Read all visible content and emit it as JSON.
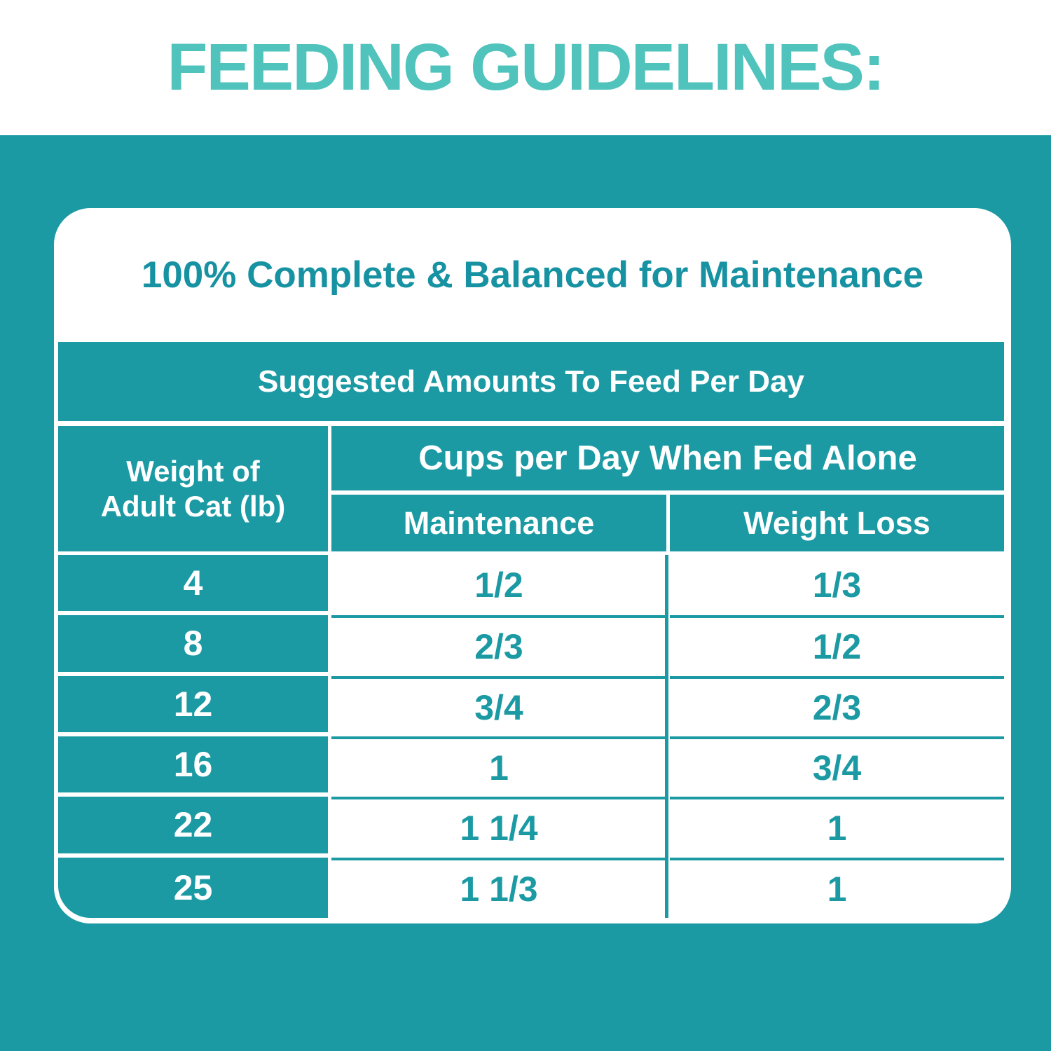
{
  "title": "FEEDING GUIDELINES:",
  "card": {
    "heading": "100% Complete & Balanced for Maintenance"
  },
  "table": {
    "band_title": "Suggested Amounts To Feed Per Day",
    "weight_header_line1": "Weight of",
    "weight_header_line2": "Adult Cat (lb)",
    "group_header": "Cups per Day When Fed Alone",
    "col_maintenance": "Maintenance",
    "col_weight_loss": "Weight Loss",
    "rows": [
      {
        "weight": "4",
        "maintenance": "1/2",
        "weight_loss": "1/3"
      },
      {
        "weight": "8",
        "maintenance": "2/3",
        "weight_loss": "1/2"
      },
      {
        "weight": "12",
        "maintenance": "3/4",
        "weight_loss": "2/3"
      },
      {
        "weight": "16",
        "maintenance": "1",
        "weight_loss": "3/4"
      },
      {
        "weight": "22",
        "maintenance": "1 1/4",
        "weight_loss": "1"
      },
      {
        "weight": "25",
        "maintenance": "1 1/3",
        "weight_loss": "1"
      }
    ]
  },
  "colors": {
    "teal": "#1B9AA4",
    "title_teal": "#4FC3BC",
    "heading_teal": "#1792A2",
    "white": "#FFFFFF"
  }
}
